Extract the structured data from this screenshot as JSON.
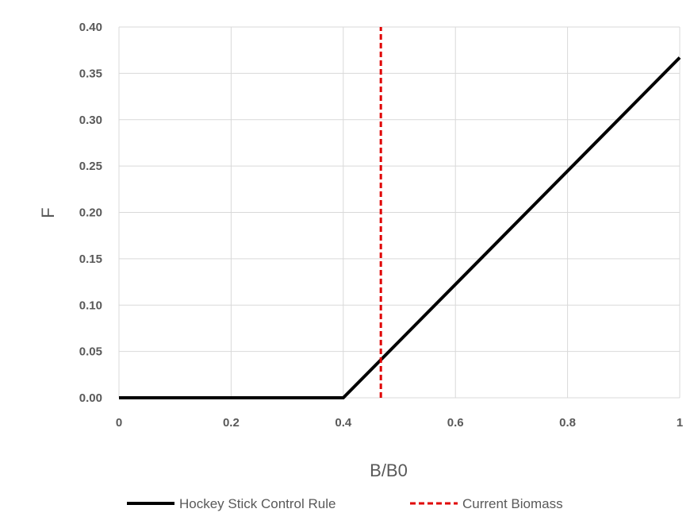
{
  "chart_data": {
    "type": "line",
    "xlabel": "B/B0",
    "ylabel": "F",
    "xlim": [
      0,
      1
    ],
    "ylim": [
      0,
      0.4
    ],
    "x_ticks": [
      0,
      0.2,
      0.4,
      0.6,
      0.8,
      1
    ],
    "x_tick_labels": [
      "0",
      "0.2",
      "0.4",
      "0.6",
      "0.8",
      "1"
    ],
    "y_ticks": [
      0,
      0.05,
      0.1,
      0.15,
      0.2,
      0.25,
      0.3,
      0.35,
      0.4
    ],
    "y_tick_labels": [
      "0.00",
      "0.05",
      "0.10",
      "0.15",
      "0.20",
      "0.25",
      "0.30",
      "0.35",
      "0.40"
    ],
    "grid": true,
    "legend_position": "bottom",
    "series": [
      {
        "name": "Hockey Stick Control Rule",
        "color": "#000000",
        "style": "solid",
        "x": [
          0,
          0.4,
          1.0
        ],
        "y": [
          0,
          0,
          0.367
        ]
      },
      {
        "name": "Current Biomass",
        "color": "#e00000",
        "style": "dashed",
        "x": [
          0.467,
          0.467
        ],
        "y": [
          0,
          0.4
        ]
      }
    ]
  }
}
